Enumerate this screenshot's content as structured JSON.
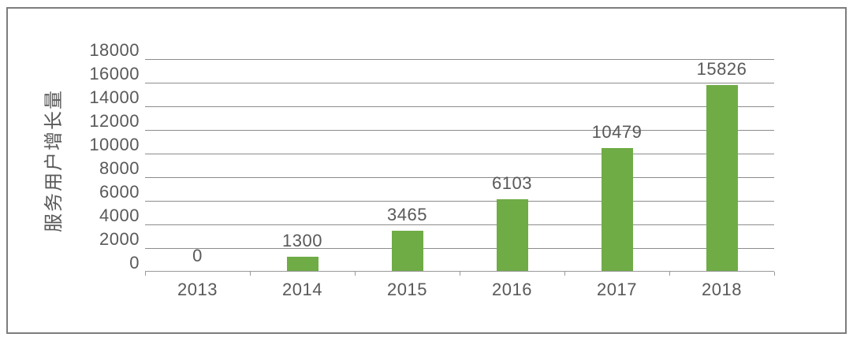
{
  "chart_data": {
    "type": "bar",
    "categories": [
      "2013",
      "2014",
      "2015",
      "2016",
      "2017",
      "2018"
    ],
    "values": [
      0,
      1300,
      3465,
      6103,
      10479,
      15826
    ],
    "data_labels": [
      "0",
      "1300",
      "3465",
      "6103",
      "10479",
      "15826"
    ],
    "title": "",
    "xlabel": "",
    "ylabel": "服务用户增长量",
    "ylim": [
      0,
      18000
    ],
    "ytick_step": 2000,
    "ytick_labels": [
      "18000",
      "16000",
      "14000",
      "12000",
      "10000",
      "8000",
      "6000",
      "4000",
      "2000",
      "0"
    ],
    "grid": true,
    "legend": false
  },
  "colors": {
    "bar": "#6fac46",
    "text": "#595959",
    "gridline": "#8c8c8c",
    "axis": "#989898",
    "frame_border": "#7d7d7d",
    "background": "#ffffff"
  }
}
